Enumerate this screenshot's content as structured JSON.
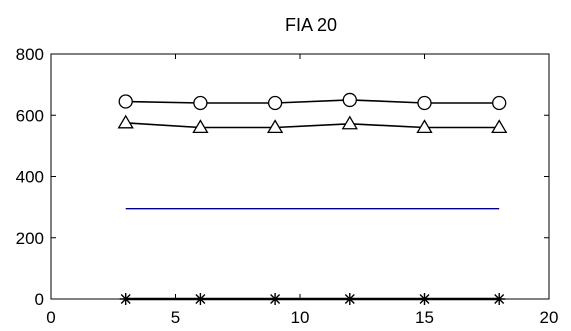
{
  "chart_data": {
    "type": "line",
    "title": "FIA 20",
    "xlabel": "",
    "ylabel": "",
    "xlim": [
      0,
      20
    ],
    "ylim": [
      0,
      800
    ],
    "x_ticks": [
      0,
      5,
      10,
      15,
      20
    ],
    "y_ticks": [
      0,
      200,
      400,
      600,
      800
    ],
    "x_tick_labels": [
      "0",
      "5",
      "10",
      "15",
      "20"
    ],
    "y_tick_labels": [
      "0",
      "200",
      "400",
      "600",
      "800"
    ],
    "grid": false,
    "legend": "none",
    "series": [
      {
        "marker": "circle",
        "color": "#000000",
        "x": [
          3,
          6,
          9,
          12,
          15,
          18
        ],
        "y": [
          645,
          640,
          640,
          650,
          640,
          640
        ]
      },
      {
        "marker": "triangle",
        "color": "#000000",
        "x": [
          3,
          6,
          9,
          12,
          15,
          18
        ],
        "y": [
          575,
          560,
          560,
          572,
          560,
          560
        ]
      },
      {
        "marker": "none",
        "color": "#00008b",
        "x": [
          3,
          18
        ],
        "y": [
          295,
          295
        ]
      },
      {
        "marker": "star",
        "color": "#000000",
        "x": [
          3,
          6,
          9,
          12,
          15,
          18
        ],
        "y": [
          0,
          0,
          0,
          0,
          0,
          0
        ]
      }
    ]
  }
}
